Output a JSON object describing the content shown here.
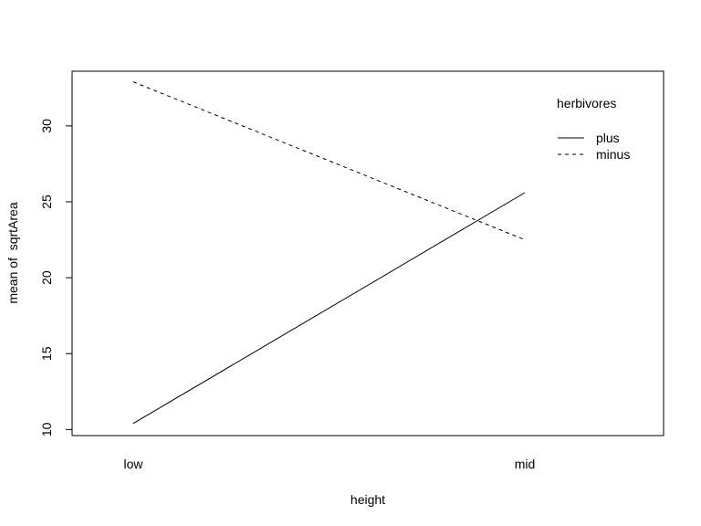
{
  "chart_data": {
    "type": "line",
    "title": "",
    "xlabel": "height",
    "ylabel": "mean of  sqrtArea",
    "categories": [
      "low",
      "mid"
    ],
    "ylim": [
      9.6,
      33.6
    ],
    "yticks": [
      10,
      15,
      20,
      25,
      30
    ],
    "grid": false,
    "legend": {
      "title": "herbivores",
      "position": "top-right"
    },
    "series": [
      {
        "name": "plus",
        "values": [
          10.4,
          25.6
        ],
        "linestyle": "solid",
        "color": "#000000"
      },
      {
        "name": "minus",
        "values": [
          32.9,
          22.5
        ],
        "linestyle": "dashed",
        "color": "#000000"
      }
    ]
  }
}
